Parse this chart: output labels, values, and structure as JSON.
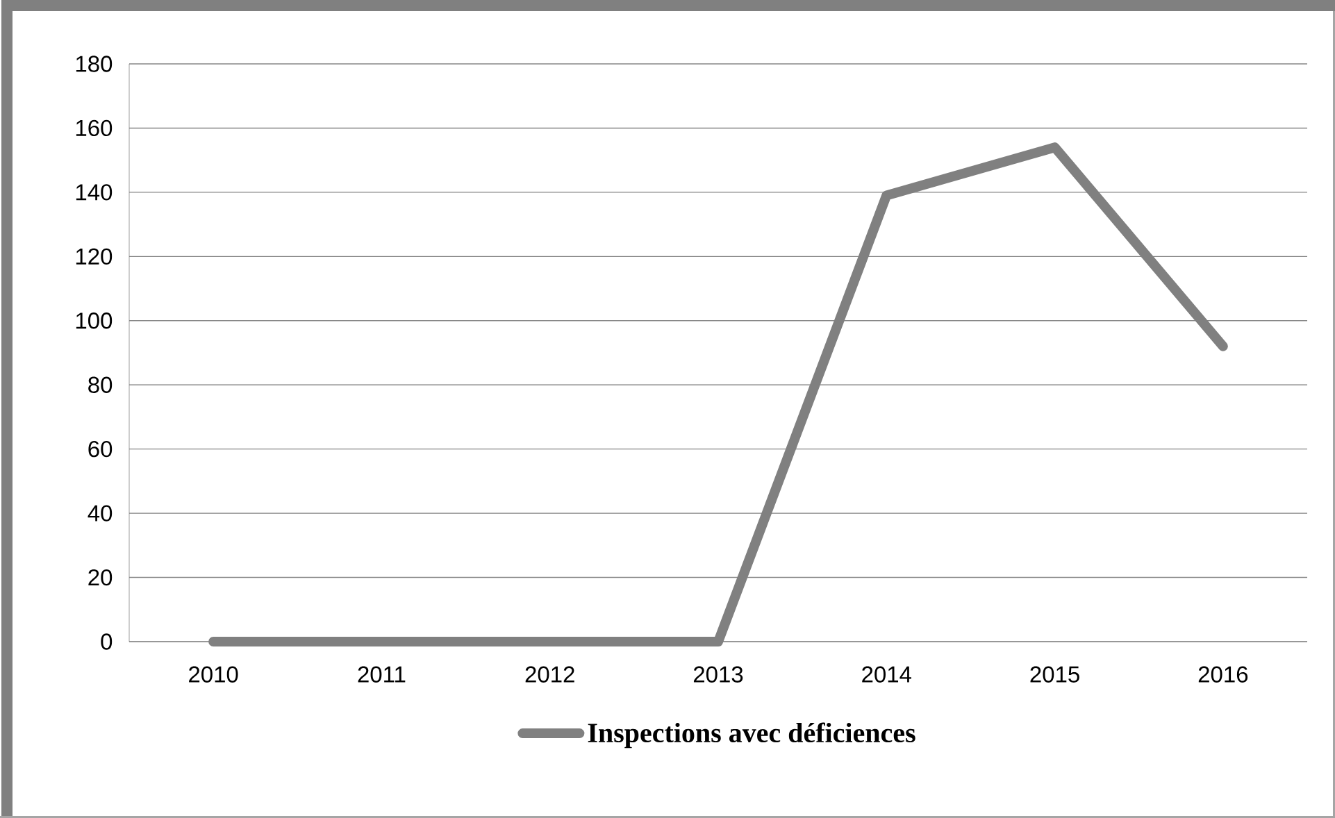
{
  "chart_data": {
    "type": "line",
    "categories": [
      "2010",
      "2011",
      "2012",
      "2013",
      "2014",
      "2015",
      "2016"
    ],
    "series": [
      {
        "name": "Inspections avec déficiences",
        "color": "#808080",
        "values": [
          0,
          0,
          0,
          0,
          139,
          154,
          92
        ]
      }
    ],
    "ylim": [
      0,
      180
    ],
    "yticks": [
      0,
      20,
      40,
      60,
      80,
      100,
      120,
      140,
      160,
      180
    ],
    "grid": "y",
    "legend": "bottom",
    "marker": "none",
    "line_style": "solid"
  }
}
